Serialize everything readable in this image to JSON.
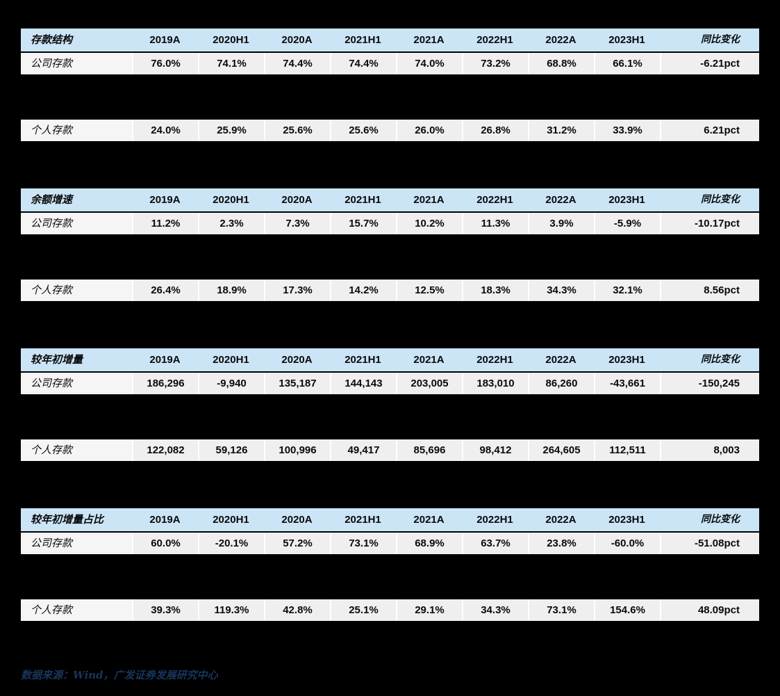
{
  "colors": {
    "page_background": "#000000",
    "header_background": "#CBE5F7",
    "row_background": "#EFEFEF",
    "label_cell_background": "#F5F5F5",
    "cell_separator": "#FFFFFF",
    "text": "#0A0A0A",
    "footer_text": "#17365D"
  },
  "columns": [
    "2019A",
    "2020H1",
    "2020A",
    "2021H1",
    "2021A",
    "2022H1",
    "2022A",
    "2023H1",
    "同比变化"
  ],
  "sections": [
    {
      "title": "存款结构",
      "rows": [
        {
          "label": "公司存款",
          "values": [
            "76.0%",
            "74.1%",
            "74.4%",
            "74.4%",
            "74.0%",
            "73.2%",
            "68.8%",
            "66.1%",
            "-6.21pct"
          ]
        },
        {
          "label": "个人存款",
          "values": [
            "24.0%",
            "25.9%",
            "25.6%",
            "25.6%",
            "26.0%",
            "26.8%",
            "31.2%",
            "33.9%",
            "6.21pct"
          ]
        }
      ]
    },
    {
      "title": "余额增速",
      "rows": [
        {
          "label": "公司存款",
          "values": [
            "11.2%",
            "2.3%",
            "7.3%",
            "15.7%",
            "10.2%",
            "11.3%",
            "3.9%",
            "-5.9%",
            "-10.17pct"
          ]
        },
        {
          "label": "个人存款",
          "values": [
            "26.4%",
            "18.9%",
            "17.3%",
            "14.2%",
            "12.5%",
            "18.3%",
            "34.3%",
            "32.1%",
            "8.56pct"
          ]
        }
      ]
    },
    {
      "title": "较年初增量",
      "rows": [
        {
          "label": "公司存款",
          "values": [
            "186,296",
            "-9,940",
            "135,187",
            "144,143",
            "203,005",
            "183,010",
            "86,260",
            "-43,661",
            "-150,245"
          ]
        },
        {
          "label": "个人存款",
          "values": [
            "122,082",
            "59,126",
            "100,996",
            "49,417",
            "85,696",
            "98,412",
            "264,605",
            "112,511",
            "8,003"
          ]
        }
      ]
    },
    {
      "title": "较年初增量占比",
      "rows": [
        {
          "label": "公司存款",
          "values": [
            "60.0%",
            "-20.1%",
            "57.2%",
            "73.1%",
            "68.9%",
            "63.7%",
            "23.8%",
            "-60.0%",
            "-51.08pct"
          ]
        },
        {
          "label": "个人存款",
          "values": [
            "39.3%",
            "119.3%",
            "42.8%",
            "25.1%",
            "29.1%",
            "34.3%",
            "73.1%",
            "154.6%",
            "48.09pct"
          ]
        }
      ]
    }
  ],
  "footer": {
    "source_note": "数据来源：Wind，广发证券发展研究中心"
  }
}
